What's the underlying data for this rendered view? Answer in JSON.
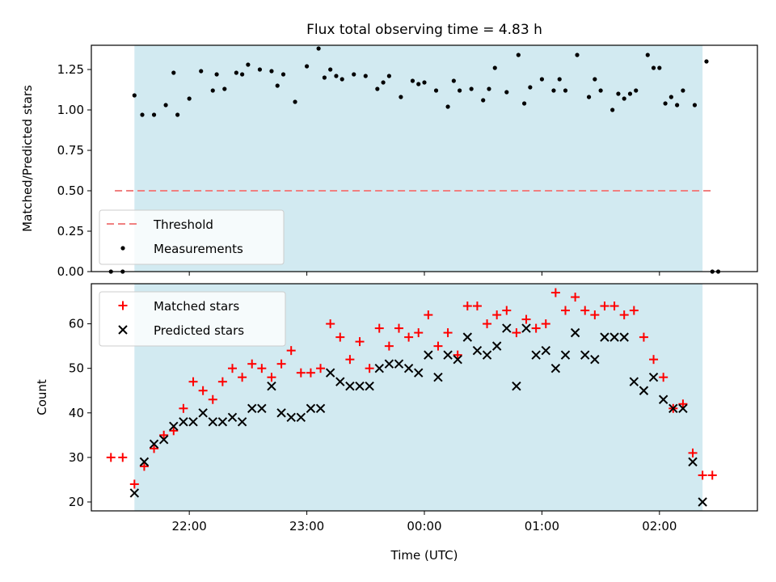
{
  "title": "Flux total observing time = 4.83 h",
  "colors": {
    "shade": "#add8e6",
    "threshold": "#f08080",
    "matched": "#ff0000",
    "predicted": "#000000",
    "measurement": "#000000"
  },
  "chart_data": [
    {
      "type": "scatter",
      "ylabel": "Matched/Predicted stars",
      "ylim": [
        0,
        1.4
      ],
      "yticks": [
        0,
        0.25,
        0.5,
        0.75,
        1.0,
        1.25
      ],
      "ytick_labels": [
        "0.00",
        "0.25",
        "0.50",
        "0.75",
        "1.00",
        "1.25"
      ],
      "shaded_interval": [
        "21:32",
        "02:22"
      ],
      "threshold": {
        "name": "Threshold",
        "value": 0.5,
        "x_range": [
          "21:22",
          "02:28"
        ]
      },
      "legend": {
        "placement": "lower-left",
        "entries": [
          "Threshold",
          "Measurements"
        ]
      },
      "series": [
        {
          "name": "Measurements",
          "x": [
            "21:26",
            "21:32",
            "21:36",
            "21:42",
            "21:48",
            "21:54",
            "22:00",
            "22:06",
            "22:12",
            "22:18",
            "22:24",
            "22:30",
            "22:36",
            "22:42",
            "22:48",
            "22:54",
            "23:00",
            "23:06",
            "23:12",
            "23:18",
            "23:24",
            "23:30",
            "23:36",
            "23:42",
            "23:48",
            "23:54",
            "00:00",
            "00:06",
            "00:12",
            "00:18",
            "00:24",
            "00:30",
            "00:36",
            "00:42",
            "00:48",
            "00:54",
            "01:00",
            "01:06",
            "01:12",
            "01:18",
            "01:24",
            "01:30",
            "01:36",
            "01:42",
            "01:48",
            "01:54",
            "02:00",
            "02:06",
            "02:12",
            "02:18",
            "02:24",
            "02:30",
            "21:20",
            "21:52",
            "22:14",
            "22:27",
            "22:45",
            "23:09",
            "23:15",
            "23:39",
            "23:57",
            "00:15",
            "00:33",
            "00:51",
            "01:09",
            "01:27",
            "01:39",
            "01:45",
            "01:57",
            "02:03",
            "02:09",
            "02:27"
          ],
          "y": [
            0.0,
            1.09,
            0.97,
            0.97,
            1.03,
            0.97,
            1.07,
            1.24,
            1.12,
            1.13,
            1.23,
            1.28,
            1.25,
            1.24,
            1.22,
            1.05,
            1.27,
            1.38,
            1.25,
            1.19,
            1.22,
            1.21,
            1.13,
            1.21,
            1.08,
            1.18,
            1.17,
            1.12,
            1.02,
            1.12,
            1.13,
            1.06,
            1.26,
            1.11,
            1.34,
            1.14,
            1.19,
            1.12,
            1.12,
            1.34,
            1.08,
            1.12,
            1.0,
            1.07,
            1.12,
            1.34,
            1.26,
            1.08,
            1.12,
            1.03,
            1.3,
            0.0,
            0.0,
            1.23,
            1.22,
            1.22,
            1.15,
            1.2,
            1.21,
            1.17,
            1.16,
            1.18,
            1.13,
            1.04,
            1.19,
            1.19,
            1.1,
            1.1,
            1.26,
            1.04,
            1.03,
            0.0
          ]
        }
      ]
    },
    {
      "type": "scatter",
      "xlabel": "Time (UTC)",
      "ylabel": "Count",
      "ylim": [
        18,
        69
      ],
      "yticks": [
        20,
        30,
        40,
        50,
        60
      ],
      "xlim": [
        "21:10",
        "02:50"
      ],
      "xticks": [
        "22:00",
        "23:00",
        "00:00",
        "01:00",
        "02:00"
      ],
      "shaded_interval": [
        "21:32",
        "02:22"
      ],
      "legend": {
        "placement": "upper-left",
        "entries": [
          "Matched stars",
          "Predicted stars"
        ]
      },
      "series": [
        {
          "name": "Matched stars",
          "x": [
            "21:20",
            "21:26",
            "21:32",
            "21:37",
            "21:42",
            "21:47",
            "21:52",
            "21:57",
            "22:02",
            "22:07",
            "22:12",
            "22:17",
            "22:22",
            "22:27",
            "22:32",
            "22:37",
            "22:42",
            "22:47",
            "22:52",
            "22:57",
            "23:02",
            "23:07",
            "23:12",
            "23:17",
            "23:22",
            "23:27",
            "23:32",
            "23:37",
            "23:42",
            "23:47",
            "23:52",
            "23:57",
            "00:02",
            "00:07",
            "00:12",
            "00:17",
            "00:22",
            "00:27",
            "00:32",
            "00:37",
            "00:42",
            "00:47",
            "00:52",
            "00:57",
            "01:02",
            "01:07",
            "01:12",
            "01:17",
            "01:22",
            "01:27",
            "01:32",
            "01:37",
            "01:42",
            "01:47",
            "01:52",
            "01:57",
            "02:02",
            "02:07",
            "02:12",
            "02:17",
            "02:22",
            "02:27"
          ],
          "y": [
            30,
            30,
            24,
            28,
            32,
            35,
            36,
            41,
            47,
            45,
            43,
            47,
            50,
            48,
            51,
            50,
            48,
            51,
            54,
            49,
            49,
            50,
            60,
            57,
            52,
            56,
            50,
            59,
            55,
            59,
            57,
            58,
            62,
            55,
            58,
            53,
            64,
            64,
            60,
            62,
            63,
            58,
            61,
            59,
            60,
            67,
            63,
            66,
            63,
            62,
            64,
            64,
            62,
            63,
            57,
            52,
            48,
            41,
            42,
            31,
            26,
            26
          ]
        },
        {
          "name": "Predicted stars",
          "x": [
            "21:32",
            "21:37",
            "21:42",
            "21:47",
            "21:52",
            "21:57",
            "22:02",
            "22:07",
            "22:12",
            "22:17",
            "22:22",
            "22:27",
            "22:32",
            "22:37",
            "22:42",
            "22:47",
            "22:52",
            "22:57",
            "23:02",
            "23:07",
            "23:12",
            "23:17",
            "23:22",
            "23:27",
            "23:32",
            "23:37",
            "23:42",
            "23:47",
            "23:52",
            "23:57",
            "00:02",
            "00:07",
            "00:12",
            "00:17",
            "00:22",
            "00:27",
            "00:32",
            "00:37",
            "00:42",
            "00:47",
            "00:52",
            "00:57",
            "01:02",
            "01:07",
            "01:12",
            "01:17",
            "01:22",
            "01:27",
            "01:32",
            "01:37",
            "01:42",
            "01:47",
            "01:52",
            "01:57",
            "02:02",
            "02:07",
            "02:12",
            "02:17",
            "02:22"
          ],
          "y": [
            22,
            29,
            33,
            34,
            37,
            38,
            38,
            40,
            38,
            38,
            39,
            38,
            41,
            41,
            46,
            40,
            39,
            39,
            41,
            41,
            49,
            47,
            46,
            46,
            46,
            50,
            51,
            51,
            50,
            49,
            53,
            48,
            53,
            52,
            57,
            54,
            53,
            55,
            59,
            46,
            59,
            53,
            54,
            50,
            53,
            58,
            53,
            52,
            57,
            57,
            57,
            47,
            45,
            48,
            43,
            41,
            41,
            29,
            20
          ]
        }
      ]
    }
  ]
}
